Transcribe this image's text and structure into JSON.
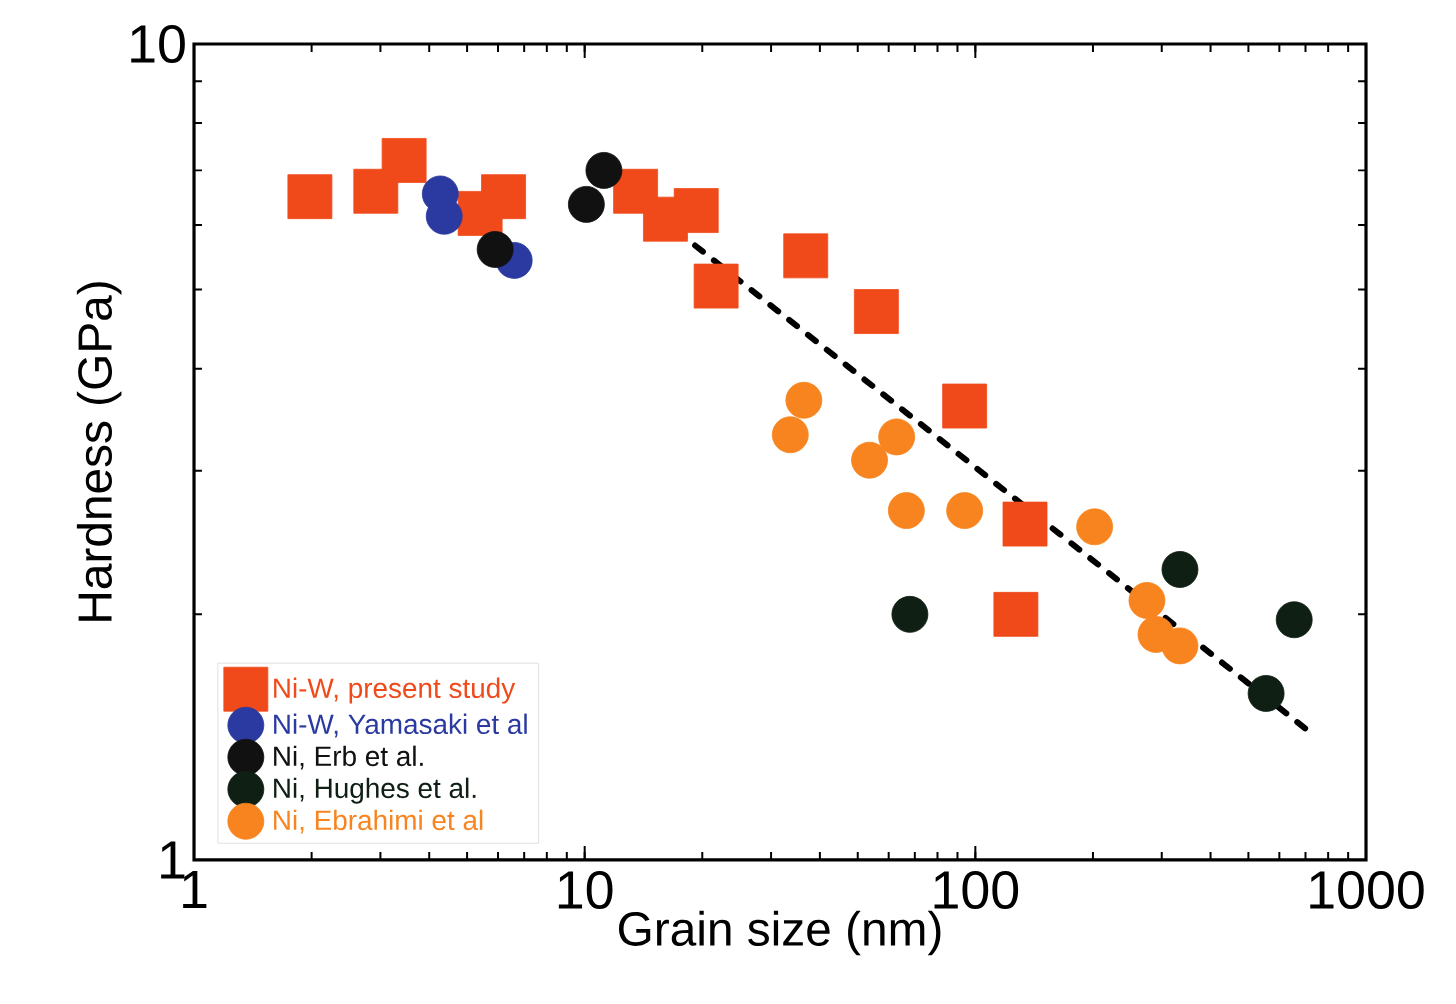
{
  "chart_data": {
    "type": "scatter",
    "xlabel": "Grain size (nm)",
    "ylabel": "Hardness (GPa)",
    "log": "xy",
    "xlim": [
      1,
      1000
    ],
    "ylim": [
      1,
      10
    ],
    "xticks": [
      1,
      10,
      100,
      1000
    ],
    "yticks": [
      1,
      10
    ],
    "grid": false,
    "legend": "bottom left",
    "series": [
      {
        "name": "Ni-W, present study",
        "color": "#f04a1a",
        "marker": "square",
        "x": [
          1.98,
          2.92,
          3.45,
          4.97,
          6.2,
          5.4,
          13.5,
          15.6,
          19.3,
          16.1,
          36.8,
          21.7,
          55.8,
          93.9,
          134,
          127
        ],
        "values": [
          6.5,
          6.6,
          7.2,
          null,
          6.5,
          6.2,
          6.6,
          null,
          6.25,
          6.1,
          5.5,
          5.05,
          4.7,
          3.6,
          2.58,
          2.0
        ]
      },
      {
        "name": "Ni-W, Yamasaki et al",
        "color": "#2b3aa0",
        "marker": "circle",
        "x": [
          4.27,
          4.37,
          6.6
        ],
        "values": [
          6.55,
          6.15,
          5.43
        ]
      },
      {
        "name": "Ni, Erb et al.",
        "color": "#111111",
        "marker": "circle",
        "x": [
          11.2,
          10.1,
          5.9
        ],
        "values": [
          7.0,
          6.36,
          5.6
        ]
      },
      {
        "name": "Ni, Hughes et al.",
        "color": "#0f1f14",
        "marker": "circle",
        "x": [
          334,
          68,
          655,
          555
        ],
        "values": [
          2.27,
          2.0,
          1.97,
          1.6
        ]
      },
      {
        "name": "Ni, Ebrahimi et al",
        "color": "#f7841e",
        "marker": "circle",
        "x": [
          36.4,
          33.6,
          62.9,
          53.6,
          66.6,
          93.9,
          202,
          275,
          290,
          334
        ],
        "values": [
          3.66,
          3.32,
          3.3,
          3.09,
          2.68,
          2.68,
          2.56,
          2.08,
          1.89,
          1.83
        ]
      },
      {
        "type": "line",
        "color": "#000000",
        "line_style": "dashed",
        "marker": "none",
        "x": [
          12.3,
          738
        ],
        "values": [
          6.7,
          1.42
        ]
      }
    ]
  }
}
